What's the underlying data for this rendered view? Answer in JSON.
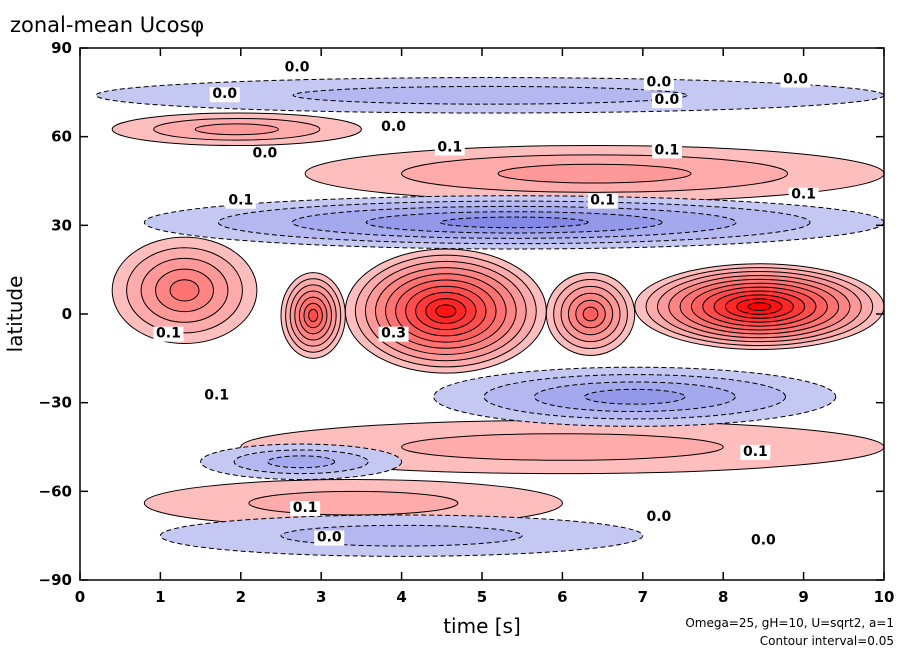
{
  "chart_data": {
    "type": "heatmap",
    "title": "zonal-mean Ucosφ",
    "xlabel": "time [s]",
    "ylabel": "latitude",
    "xlim": [
      0,
      10
    ],
    "ylim": [
      -90,
      90
    ],
    "x_ticks": [
      0,
      1,
      2,
      3,
      4,
      5,
      6,
      7,
      8,
      9,
      10
    ],
    "y_ticks": [
      90,
      60,
      30,
      0,
      -30,
      -60,
      -90
    ],
    "contour_interval": 0.05,
    "annotations": [
      "Omega=25, gH=10, U=sqrt2, a=1",
      "Contour interval=0.05"
    ],
    "contour_labels": [
      {
        "t": 2.7,
        "lat": 82,
        "text": "0.0"
      },
      {
        "t": 7.2,
        "lat": 77,
        "text": "0.0"
      },
      {
        "t": 8.9,
        "lat": 78,
        "text": "0.0"
      },
      {
        "t": 1.8,
        "lat": 73,
        "text": "0.0"
      },
      {
        "t": 3.9,
        "lat": 62,
        "text": "0.0"
      },
      {
        "t": 7.3,
        "lat": 71,
        "text": "0.0"
      },
      {
        "t": 2.3,
        "lat": 53,
        "text": "0.0"
      },
      {
        "t": 4.6,
        "lat": 55,
        "text": "0.1"
      },
      {
        "t": 7.3,
        "lat": 54,
        "text": "0.1"
      },
      {
        "t": 2.0,
        "lat": 37,
        "text": "0.1"
      },
      {
        "t": 6.5,
        "lat": 37,
        "text": "0.1"
      },
      {
        "t": 9.0,
        "lat": 39,
        "text": "0.1"
      },
      {
        "t": 1.1,
        "lat": -8,
        "text": "0.1"
      },
      {
        "t": 3.9,
        "lat": -8,
        "text": "0.3"
      },
      {
        "t": 1.7,
        "lat": -29,
        "text": "0.1"
      },
      {
        "t": 8.4,
        "lat": -48,
        "text": "0.1"
      },
      {
        "t": 2.8,
        "lat": -67,
        "text": "0.1"
      },
      {
        "t": 7.2,
        "lat": -70,
        "text": "0.0"
      },
      {
        "t": 3.1,
        "lat": -77,
        "text": "0.0"
      },
      {
        "t": 8.5,
        "lat": -78,
        "text": "0.0"
      }
    ],
    "regions": [
      {
        "sign": "positive",
        "level": 0.5,
        "t0": 3.3,
        "t1": 5.8,
        "lat0": -20,
        "lat1": 22
      },
      {
        "sign": "positive",
        "level": 0.55,
        "t0": 6.9,
        "t1": 10.0,
        "lat0": -12,
        "lat1": 17
      },
      {
        "sign": "positive",
        "level": 0.35,
        "t0": 2.5,
        "t1": 3.3,
        "lat0": -15,
        "lat1": 14
      },
      {
        "sign": "positive",
        "level": 0.3,
        "t0": 5.8,
        "t1": 6.9,
        "lat0": -14,
        "lat1": 14
      },
      {
        "sign": "positive",
        "level": 0.25,
        "t0": 0.4,
        "t1": 2.2,
        "lat0": -10,
        "lat1": 26
      },
      {
        "sign": "positive",
        "level": 0.15,
        "t0": 2.8,
        "t1": 10.0,
        "lat0": 38,
        "lat1": 57
      },
      {
        "sign": "positive",
        "level": 0.15,
        "t0": 0.4,
        "t1": 3.5,
        "lat0": 57,
        "lat1": 68
      },
      {
        "sign": "positive",
        "level": 0.1,
        "t0": 2.0,
        "t1": 10.0,
        "lat0": -54,
        "lat1": -36
      },
      {
        "sign": "positive",
        "level": 0.1,
        "t0": 0.8,
        "t1": 6.0,
        "lat0": -72,
        "lat1": -56
      },
      {
        "sign": "negative",
        "level": 0.25,
        "t0": 0.8,
        "t1": 10.0,
        "lat0": 22,
        "lat1": 40
      },
      {
        "sign": "negative",
        "level": 0.2,
        "t0": 4.4,
        "t1": 9.4,
        "lat0": -38,
        "lat1": -18
      },
      {
        "sign": "negative",
        "level": 0.15,
        "t0": 1.5,
        "t1": 4.0,
        "lat0": -56,
        "lat1": -44
      },
      {
        "sign": "negative",
        "level": 0.1,
        "t0": 0.2,
        "t1": 10.0,
        "lat0": 68,
        "lat1": 80
      },
      {
        "sign": "negative",
        "level": 0.1,
        "t0": 1.0,
        "t1": 7.0,
        "lat0": -82,
        "lat1": -68
      }
    ],
    "colors": {
      "positive": "#ff0000",
      "negative": "#1e28d2",
      "background": "#ffffff",
      "contour": "#000000"
    }
  }
}
